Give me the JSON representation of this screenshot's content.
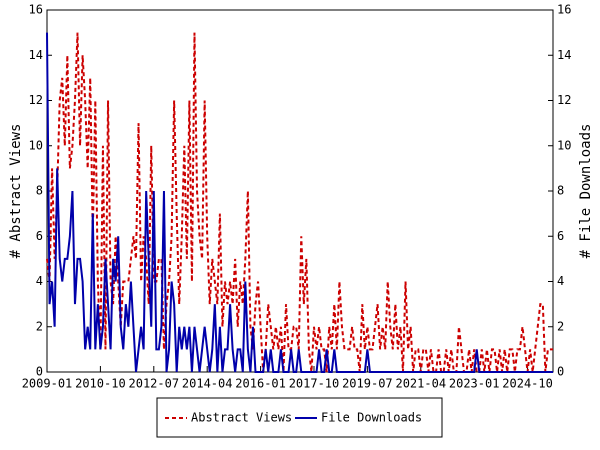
{
  "chart_data": {
    "type": "line",
    "y_label": "# Abstract Views",
    "y2_label": "# File Downloads",
    "x": [
      "2009-01",
      "2009-02",
      "2009-03",
      "2009-04",
      "2009-05",
      "2009-06",
      "2009-07",
      "2009-08",
      "2009-09",
      "2009-10",
      "2009-11",
      "2009-12",
      "2010-01",
      "2010-02",
      "2010-03",
      "2010-04",
      "2010-05",
      "2010-06",
      "2010-07",
      "2010-08",
      "2010-09",
      "2010-10",
      "2010-11",
      "2010-12",
      "2011-01",
      "2011-02",
      "2011-03",
      "2011-04",
      "2011-05",
      "2011-06",
      "2011-07",
      "2011-08",
      "2011-09",
      "2011-10",
      "2011-11",
      "2011-12",
      "2012-01",
      "2012-02",
      "2012-03",
      "2012-04",
      "2012-05",
      "2012-06",
      "2012-07",
      "2012-08",
      "2012-09",
      "2012-10",
      "2012-11",
      "2012-12",
      "2013-01",
      "2013-02",
      "2013-03",
      "2013-04",
      "2013-05",
      "2013-06",
      "2013-07",
      "2013-08",
      "2013-09",
      "2013-10",
      "2013-11",
      "2013-12",
      "2014-01",
      "2014-02",
      "2014-03",
      "2014-04",
      "2014-05",
      "2014-06",
      "2014-07",
      "2014-08",
      "2014-09",
      "2014-10",
      "2014-11",
      "2014-12",
      "2015-01",
      "2015-02",
      "2015-03",
      "2015-04",
      "2015-05",
      "2015-06",
      "2015-07",
      "2015-08",
      "2015-09",
      "2015-10",
      "2015-11",
      "2015-12",
      "2016-01",
      "2016-02",
      "2016-03",
      "2016-04",
      "2016-05",
      "2016-06",
      "2016-07",
      "2016-08",
      "2016-09",
      "2016-10",
      "2016-11",
      "2016-12",
      "2017-01",
      "2017-02",
      "2017-03",
      "2017-04",
      "2017-05",
      "2017-06",
      "2017-07",
      "2017-08",
      "2017-09",
      "2017-10",
      "2017-11",
      "2017-12",
      "2018-01",
      "2018-02",
      "2018-03",
      "2018-04",
      "2018-05",
      "2018-06",
      "2018-07",
      "2018-08",
      "2018-09",
      "2018-10",
      "2018-11",
      "2018-12",
      "2019-01",
      "2019-02",
      "2019-03",
      "2019-04",
      "2019-05",
      "2019-06",
      "2019-07",
      "2019-08",
      "2019-09",
      "2019-10",
      "2019-11",
      "2019-12",
      "2020-01",
      "2020-02",
      "2020-03",
      "2020-04",
      "2020-05",
      "2020-06",
      "2020-07",
      "2020-08",
      "2020-09",
      "2020-10",
      "2020-11",
      "2020-12",
      "2021-01",
      "2021-02",
      "2021-03",
      "2021-04",
      "2021-05",
      "2021-06",
      "2021-07",
      "2021-08",
      "2021-09",
      "2021-10",
      "2021-11",
      "2021-12",
      "2022-01",
      "2022-02",
      "2022-03",
      "2022-04",
      "2022-05",
      "2022-06",
      "2022-07",
      "2022-08",
      "2022-09",
      "2022-10",
      "2022-11",
      "2022-12",
      "2023-01",
      "2023-02",
      "2023-03",
      "2023-04",
      "2023-05",
      "2023-06",
      "2023-07",
      "2023-08",
      "2023-09",
      "2023-10",
      "2023-11",
      "2023-12",
      "2024-01",
      "2024-02",
      "2024-03",
      "2024-04",
      "2024-05",
      "2024-06",
      "2024-07",
      "2024-08",
      "2024-09",
      "2024-10",
      "2024-11",
      "2024-12",
      "2025-01",
      "2025-02",
      "2025-03",
      "2025-04",
      "2025-05",
      "2025-06",
      "2025-07",
      "2025-08"
    ],
    "xlim": [
      "2009-01",
      "2025-08"
    ],
    "xticks": [
      "2009-01",
      "2010-10",
      "2012-07",
      "2014-04",
      "2016-01",
      "2017-10",
      "2019-07",
      "2021-04",
      "2023-01",
      "2024-10"
    ],
    "ylim": [
      0,
      16
    ],
    "yticks": [
      0,
      2,
      4,
      6,
      8,
      10,
      12,
      14,
      16
    ],
    "y2lim": [
      0,
      16
    ],
    "y2ticks": [
      0,
      2,
      4,
      6,
      8,
      10,
      12,
      14,
      16
    ],
    "series": [
      {
        "name": "Abstract Views",
        "color": "#cc0000",
        "dash": true,
        "values": [
          5,
          4,
          9,
          5,
          8,
          12,
          13,
          10,
          14,
          9,
          10,
          12,
          15,
          10,
          14,
          12,
          9,
          13,
          6,
          12,
          4,
          1,
          10,
          1,
          12,
          4,
          3,
          6,
          4,
          2,
          4,
          4,
          4,
          5,
          6,
          5,
          11,
          4,
          6,
          5,
          3,
          10,
          4,
          4,
          5,
          5,
          1,
          3,
          4,
          6,
          12,
          7,
          3,
          6,
          10,
          5,
          12,
          4,
          15,
          8,
          6,
          5,
          12,
          6,
          3,
          5,
          4,
          3,
          7,
          2,
          4,
          3,
          4,
          3,
          5,
          2,
          4,
          3,
          5,
          8,
          2,
          1,
          3,
          4,
          2,
          0,
          1,
          3,
          2,
          1,
          2,
          1,
          2,
          0,
          3,
          1,
          1,
          2,
          2,
          1,
          6,
          3,
          5,
          1,
          0,
          2,
          1,
          2,
          1,
          1,
          0,
          2,
          1,
          3,
          1,
          4,
          2,
          1,
          1,
          1,
          2,
          1,
          1,
          0,
          3,
          1,
          2,
          1,
          1,
          2,
          3,
          1,
          2,
          1,
          4,
          2,
          1,
          3,
          1,
          2,
          0,
          4,
          1,
          2,
          0,
          1,
          1,
          0,
          1,
          1,
          0,
          1,
          0,
          0,
          1,
          0,
          0,
          1,
          0,
          1,
          0,
          0,
          2,
          1,
          0,
          0,
          1,
          0,
          1,
          0,
          0,
          1,
          0,
          1,
          0,
          1,
          1,
          0,
          1,
          0,
          1,
          0,
          1,
          1,
          0,
          1,
          1,
          2,
          1,
          0,
          1,
          0,
          1,
          2,
          3,
          3,
          0,
          1,
          1,
          1
        ]
      },
      {
        "name": "File Downloads",
        "color": "#0000aa",
        "dash": false,
        "axis": "y2",
        "values": [
          15,
          3,
          4,
          2,
          9,
          5,
          4,
          5,
          5,
          6,
          8,
          3,
          5,
          5,
          4,
          1,
          2,
          1,
          7,
          1,
          3,
          1,
          2,
          5,
          3,
          1,
          5,
          4,
          6,
          2,
          1,
          3,
          2,
          4,
          2,
          0,
          1,
          2,
          1,
          8,
          5,
          2,
          8,
          1,
          1,
          2,
          8,
          0,
          1,
          4,
          3,
          0,
          2,
          1,
          2,
          1,
          2,
          0,
          2,
          1,
          0,
          1,
          2,
          1,
          0,
          1,
          3,
          0,
          2,
          0,
          1,
          1,
          3,
          1,
          0,
          1,
          1,
          0,
          4,
          1,
          0,
          2,
          0,
          0,
          0,
          0,
          1,
          0,
          1,
          0,
          0,
          0,
          1,
          0,
          0,
          0,
          1,
          0,
          0,
          1,
          0,
          0,
          0,
          0,
          0,
          0,
          0,
          1,
          0,
          0,
          1,
          0,
          0,
          1,
          0,
          0,
          0,
          0,
          0,
          0,
          0,
          0,
          0,
          0,
          0,
          0,
          1,
          0,
          0,
          0,
          0,
          0,
          0,
          0,
          0,
          0,
          0,
          0,
          0,
          0,
          0,
          0,
          0,
          0,
          0,
          0,
          0,
          0,
          0,
          0,
          0,
          0,
          0,
          0,
          0,
          0,
          0,
          0,
          0,
          0,
          0,
          0,
          0,
          0,
          0,
          0,
          0,
          0,
          0,
          1,
          0,
          0,
          0,
          0,
          0,
          0,
          0,
          0,
          0,
          0,
          0,
          0,
          0,
          0,
          0,
          0,
          0,
          0,
          0,
          0,
          0,
          0,
          0,
          0,
          0,
          0,
          0,
          0,
          0,
          0
        ]
      }
    ]
  }
}
